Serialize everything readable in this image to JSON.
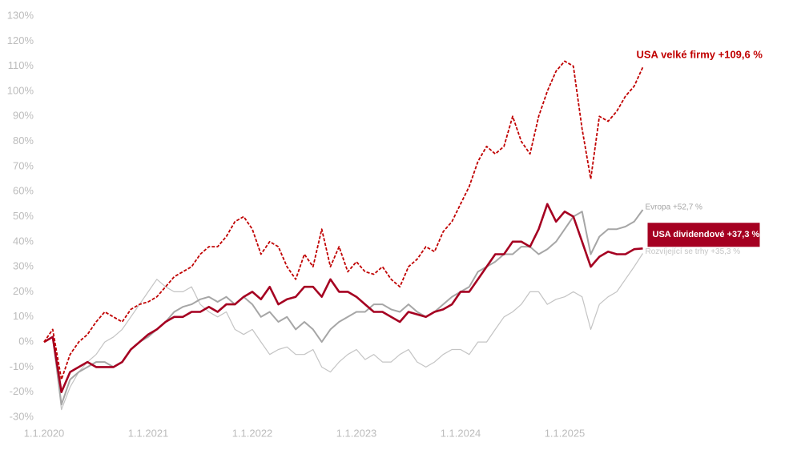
{
  "chart_data": {
    "type": "line",
    "x": [
      "2020-01",
      "2020-02",
      "2020-03",
      "2020-04",
      "2020-05",
      "2020-06",
      "2020-07",
      "2020-08",
      "2020-09",
      "2020-10",
      "2020-11",
      "2020-12",
      "2021-01",
      "2021-02",
      "2021-03",
      "2021-04",
      "2021-05",
      "2021-06",
      "2021-07",
      "2021-08",
      "2021-09",
      "2021-10",
      "2021-11",
      "2021-12",
      "2022-01",
      "2022-02",
      "2022-03",
      "2022-04",
      "2022-05",
      "2022-06",
      "2022-07",
      "2022-08",
      "2022-09",
      "2022-10",
      "2022-11",
      "2022-12",
      "2023-01",
      "2023-02",
      "2023-03",
      "2023-04",
      "2023-05",
      "2023-06",
      "2023-07",
      "2023-08",
      "2023-09",
      "2023-10",
      "2023-11",
      "2023-12",
      "2024-01",
      "2024-02",
      "2024-03",
      "2024-04",
      "2024-05",
      "2024-06",
      "2024-07",
      "2024-08",
      "2024-09",
      "2024-10",
      "2024-11",
      "2024-12",
      "2025-01",
      "2025-02",
      "2025-03",
      "2025-04",
      "2025-05",
      "2025-06",
      "2025-07",
      "2025-08",
      "2025-09",
      "2025-10"
    ],
    "series": [
      {
        "name": "Rozvíjející se trhy +35,3 %",
        "color": "#c4c4c4",
        "width": 1.2,
        "dash": false,
        "values": [
          0,
          2,
          -27,
          -18,
          -12,
          -8,
          -5,
          0,
          2,
          5,
          10,
          15,
          20,
          25,
          22,
          20,
          20,
          22,
          15,
          12,
          10,
          12,
          5,
          3,
          5,
          0,
          -5,
          -3,
          -2,
          -5,
          -5,
          -3,
          -10,
          -12,
          -8,
          -5,
          -3,
          -7,
          -5,
          -8,
          -8,
          -5,
          -3,
          -8,
          -10,
          -8,
          -5,
          -3,
          -3,
          -5,
          0,
          0,
          5,
          10,
          12,
          15,
          20,
          20,
          15,
          17,
          18,
          20,
          18,
          5,
          15,
          18,
          20,
          25,
          30,
          35.3
        ]
      },
      {
        "name": "Evropa +52,7 %",
        "color": "#a6a6a6",
        "width": 2,
        "dash": false,
        "values": [
          0,
          2,
          -25,
          -15,
          -12,
          -10,
          -8,
          -8,
          -10,
          -8,
          -3,
          0,
          2,
          5,
          8,
          12,
          14,
          15,
          17,
          18,
          16,
          18,
          15,
          18,
          15,
          10,
          12,
          8,
          10,
          5,
          8,
          5,
          0,
          5,
          8,
          10,
          12,
          12,
          15,
          15,
          13,
          12,
          15,
          12,
          10,
          12,
          15,
          18,
          20,
          22,
          28,
          30,
          32,
          35,
          35,
          38,
          38,
          35,
          37,
          40,
          45,
          50,
          52,
          35,
          42,
          45,
          45,
          46,
          48,
          52.7
        ]
      },
      {
        "name": "USA dividendové +37,3 %",
        "color": "#a50021",
        "width": 2.6,
        "dash": false,
        "values": [
          0,
          2,
          -20,
          -12,
          -10,
          -8,
          -10,
          -10,
          -10,
          -8,
          -3,
          0,
          3,
          5,
          8,
          10,
          10,
          12,
          12,
          14,
          12,
          15,
          15,
          18,
          20,
          17,
          22,
          15,
          17,
          18,
          22,
          22,
          18,
          25,
          20,
          20,
          18,
          15,
          12,
          12,
          10,
          8,
          12,
          11,
          10,
          12,
          13,
          15,
          20,
          20,
          25,
          30,
          35,
          35,
          40,
          40,
          38,
          45,
          55,
          48,
          52,
          50,
          40,
          30,
          34,
          36,
          35,
          35,
          37,
          37.3
        ]
      },
      {
        "name": "USA velké firmy +109,6 %",
        "color": "#c00000",
        "width": 1.8,
        "dash": true,
        "values": [
          0,
          5,
          -15,
          -5,
          0,
          3,
          8,
          12,
          10,
          8,
          13,
          15,
          16,
          18,
          22,
          26,
          28,
          30,
          35,
          38,
          38,
          42,
          48,
          50,
          45,
          35,
          40,
          38,
          30,
          25,
          35,
          30,
          45,
          30,
          38,
          28,
          32,
          28,
          27,
          30,
          25,
          22,
          30,
          33,
          38,
          36,
          44,
          48,
          55,
          62,
          72,
          78,
          75,
          78,
          90,
          80,
          75,
          90,
          100,
          108,
          112,
          110,
          85,
          65,
          90,
          88,
          92,
          98,
          102,
          109.6
        ]
      }
    ],
    "xlim": [
      "2020-01",
      "2027-01"
    ],
    "xticks": [
      {
        "value": "2020-01",
        "label": "1.1.2020"
      },
      {
        "value": "2021-01",
        "label": "1.1.2021"
      },
      {
        "value": "2022-01",
        "label": "1.1.2022"
      },
      {
        "value": "2023-01",
        "label": "1.1.2023"
      },
      {
        "value": "2024-01",
        "label": "1.1.2024"
      },
      {
        "value": "2025-01",
        "label": "1.1.2025"
      }
    ],
    "ylim": [
      -30,
      130
    ],
    "yticks": [
      {
        "value": -30,
        "label": "-30%"
      },
      {
        "value": -20,
        "label": "-20%"
      },
      {
        "value": -10,
        "label": "-10%"
      },
      {
        "value": 0,
        "label": "0%"
      },
      {
        "value": 10,
        "label": "10%"
      },
      {
        "value": 20,
        "label": "20%"
      },
      {
        "value": 30,
        "label": "30%"
      },
      {
        "value": 40,
        "label": "40%"
      },
      {
        "value": 50,
        "label": "50%"
      },
      {
        "value": 60,
        "label": "60%"
      },
      {
        "value": 70,
        "label": "70%"
      },
      {
        "value": 80,
        "label": "80%"
      },
      {
        "value": 90,
        "label": "90%"
      },
      {
        "value": 100,
        "label": "100%"
      },
      {
        "value": 110,
        "label": "110%"
      },
      {
        "value": 120,
        "label": "120%"
      },
      {
        "value": 130,
        "label": "130%"
      }
    ],
    "grid": false
  }
}
